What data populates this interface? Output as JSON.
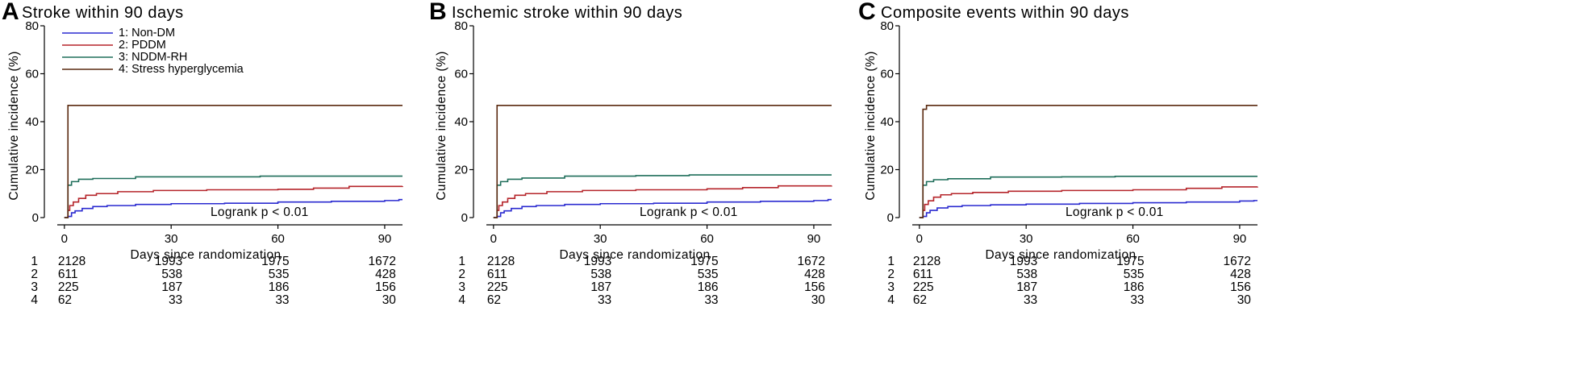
{
  "colors": {
    "series_1": "#2b2bd0",
    "series_2": "#b5242a",
    "series_3": "#1f6e5a",
    "series_4": "#5a2a10",
    "axis": "#000000"
  },
  "legend": {
    "placement": "top-left (panel A only)",
    "entries": [
      "1: Non-DM",
      "2: PDDM",
      "3: NDDM-RH",
      "4: Stress hyperglycemia"
    ]
  },
  "risk_table": {
    "row_labels": [
      "1",
      "2",
      "3",
      "4"
    ]
  },
  "chart_data": [
    {
      "type": "line",
      "panel_letter": "A",
      "title": "Stroke within 90 days",
      "xlabel": "Days since randomization",
      "ylabel": "Cumulative incidence (%)",
      "xlim": [
        -2,
        95
      ],
      "ylim": [
        0,
        80
      ],
      "x_ticks": [
        0,
        30,
        60,
        90
      ],
      "y_ticks": [
        0,
        20,
        40,
        60,
        80
      ],
      "grid": false,
      "annotation": "Logrank p < 0.01",
      "series": [
        {
          "name": "1: Non-DM",
          "points": [
            [
              0,
              0
            ],
            [
              1,
              0.5
            ],
            [
              2,
              2
            ],
            [
              3,
              2.8
            ],
            [
              5,
              3.8
            ],
            [
              8,
              4.6
            ],
            [
              12,
              5.0
            ],
            [
              20,
              5.5
            ],
            [
              30,
              5.8
            ],
            [
              45,
              6.0
            ],
            [
              60,
              6.5
            ],
            [
              75,
              6.8
            ],
            [
              90,
              7.1
            ],
            [
              94,
              7.5
            ],
            [
              95,
              7.5
            ]
          ]
        },
        {
          "name": "2: PDDM",
          "points": [
            [
              0,
              0
            ],
            [
              1,
              3
            ],
            [
              1.5,
              5
            ],
            [
              2.5,
              6.5
            ],
            [
              4,
              8
            ],
            [
              6,
              9.3
            ],
            [
              9,
              10
            ],
            [
              15,
              10.8
            ],
            [
              25,
              11.3
            ],
            [
              40,
              11.6
            ],
            [
              60,
              11.8
            ],
            [
              70,
              12.3
            ],
            [
              80,
              13.0
            ],
            [
              95,
              13.1
            ]
          ]
        },
        {
          "name": "3: NDDM-RH",
          "points": [
            [
              0,
              0
            ],
            [
              1,
              13.5
            ],
            [
              2,
              15
            ],
            [
              4,
              16
            ],
            [
              8,
              16.3
            ],
            [
              20,
              17.0
            ],
            [
              40,
              17.0
            ],
            [
              55,
              17.3
            ],
            [
              95,
              17.3
            ]
          ]
        },
        {
          "name": "4: Stress hyperglycemia",
          "points": [
            [
              0,
              0
            ],
            [
              1,
              3
            ],
            [
              1,
              46.8
            ],
            [
              95,
              46.8
            ]
          ]
        }
      ],
      "risk_table": {
        "x": [
          0,
          30,
          60,
          90
        ],
        "rows": [
          [
            "2128",
            "1993",
            "1975",
            "1672"
          ],
          [
            "611",
            "538",
            "535",
            "428"
          ],
          [
            "225",
            "187",
            "186",
            "156"
          ],
          [
            "62",
            "33",
            "33",
            "30"
          ]
        ]
      }
    },
    {
      "type": "line",
      "panel_letter": "B",
      "title": "Ischemic stroke within 90 days",
      "xlabel": "Days since randomization",
      "ylabel": "Cumulative incidence (%)",
      "xlim": [
        -2,
        95
      ],
      "ylim": [
        0,
        80
      ],
      "x_ticks": [
        0,
        30,
        60,
        90
      ],
      "y_ticks": [
        0,
        20,
        40,
        60,
        80
      ],
      "grid": false,
      "annotation": "Logrank p < 0.01",
      "series": [
        {
          "name": "1: Non-DM",
          "points": [
            [
              0,
              0
            ],
            [
              1,
              0.5
            ],
            [
              2,
              2
            ],
            [
              3,
              2.8
            ],
            [
              5,
              3.8
            ],
            [
              8,
              4.6
            ],
            [
              12,
              5.0
            ],
            [
              20,
              5.5
            ],
            [
              30,
              5.8
            ],
            [
              45,
              6.0
            ],
            [
              60,
              6.5
            ],
            [
              75,
              6.8
            ],
            [
              90,
              7.1
            ],
            [
              94,
              7.5
            ],
            [
              95,
              7.5
            ]
          ]
        },
        {
          "name": "2: PDDM",
          "points": [
            [
              0,
              0
            ],
            [
              1,
              3
            ],
            [
              1.5,
              5
            ],
            [
              2.5,
              6.5
            ],
            [
              4,
              8
            ],
            [
              6,
              9.3
            ],
            [
              9,
              10
            ],
            [
              15,
              10.8
            ],
            [
              25,
              11.3
            ],
            [
              40,
              11.6
            ],
            [
              60,
              12.0
            ],
            [
              70,
              12.5
            ],
            [
              80,
              13.2
            ],
            [
              95,
              13.3
            ]
          ]
        },
        {
          "name": "3: NDDM-RH",
          "points": [
            [
              0,
              0
            ],
            [
              1,
              13.5
            ],
            [
              2,
              15
            ],
            [
              4,
              16
            ],
            [
              8,
              16.5
            ],
            [
              20,
              17.3
            ],
            [
              40,
              17.5
            ],
            [
              55,
              17.8
            ],
            [
              95,
              17.8
            ]
          ]
        },
        {
          "name": "4: Stress hyperglycemia",
          "points": [
            [
              0,
              0
            ],
            [
              1,
              3
            ],
            [
              1,
              46.8
            ],
            [
              95,
              46.8
            ]
          ]
        }
      ],
      "risk_table": {
        "x": [
          0,
          30,
          60,
          90
        ],
        "rows": [
          [
            "2128",
            "1993",
            "1975",
            "1672"
          ],
          [
            "611",
            "538",
            "535",
            "428"
          ],
          [
            "225",
            "187",
            "186",
            "156"
          ],
          [
            "62",
            "33",
            "33",
            "30"
          ]
        ]
      }
    },
    {
      "type": "line",
      "panel_letter": "C",
      "title": "Composite events within 90 days",
      "xlabel": "Days since randomization",
      "ylabel": "Cumulative incidence (%)",
      "xlim": [
        -2,
        95
      ],
      "ylim": [
        0,
        80
      ],
      "x_ticks": [
        0,
        30,
        60,
        90
      ],
      "y_ticks": [
        0,
        20,
        40,
        60,
        80
      ],
      "grid": false,
      "annotation": "Logrank p < 0.01",
      "series": [
        {
          "name": "1: Non-DM",
          "points": [
            [
              0,
              0
            ],
            [
              1,
              0.5
            ],
            [
              2,
              2
            ],
            [
              3,
              3
            ],
            [
              5,
              4
            ],
            [
              8,
              4.6
            ],
            [
              12,
              5.0
            ],
            [
              20,
              5.3
            ],
            [
              30,
              5.6
            ],
            [
              45,
              5.9
            ],
            [
              60,
              6.2
            ],
            [
              75,
              6.5
            ],
            [
              90,
              6.9
            ],
            [
              94,
              7.1
            ],
            [
              95,
              7.1
            ]
          ]
        },
        {
          "name": "2: PDDM",
          "points": [
            [
              0,
              0
            ],
            [
              1,
              3
            ],
            [
              1.5,
              5.5
            ],
            [
              2.5,
              7
            ],
            [
              4,
              8.5
            ],
            [
              6,
              9.5
            ],
            [
              9,
              10
            ],
            [
              15,
              10.5
            ],
            [
              25,
              11.0
            ],
            [
              40,
              11.3
            ],
            [
              60,
              11.6
            ],
            [
              75,
              12.2
            ],
            [
              85,
              12.8
            ],
            [
              95,
              12.9
            ]
          ]
        },
        {
          "name": "3: NDDM-RH",
          "points": [
            [
              0,
              0
            ],
            [
              1,
              13.5
            ],
            [
              2,
              15
            ],
            [
              4,
              15.8
            ],
            [
              8,
              16.2
            ],
            [
              20,
              16.9
            ],
            [
              40,
              17.0
            ],
            [
              55,
              17.2
            ],
            [
              95,
              17.2
            ]
          ]
        },
        {
          "name": "4: Stress hyperglycemia",
          "points": [
            [
              0,
              0
            ],
            [
              1,
              3
            ],
            [
              1,
              45.2
            ],
            [
              2,
              46.8
            ],
            [
              95,
              46.8
            ]
          ]
        }
      ],
      "risk_table": {
        "x": [
          0,
          30,
          60,
          90
        ],
        "rows": [
          [
            "2128",
            "1993",
            "1975",
            "1672"
          ],
          [
            "611",
            "538",
            "535",
            "428"
          ],
          [
            "225",
            "187",
            "186",
            "156"
          ],
          [
            "62",
            "33",
            "33",
            "30"
          ]
        ]
      }
    }
  ]
}
